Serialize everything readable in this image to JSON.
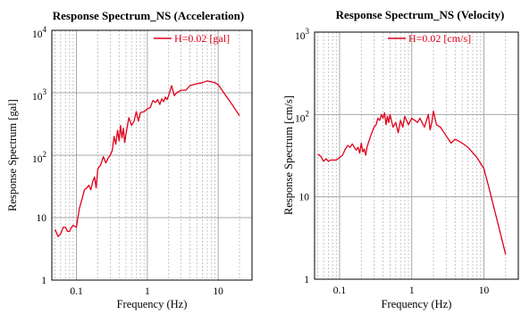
{
  "chart_data": [
    {
      "type": "line",
      "title": "Response Spectrum_NS (Acceleration)",
      "xlabel": "Frequency (Hz)",
      "ylabel": "Response Spectrum [gal]",
      "xscale": "log",
      "yscale": "log",
      "xlim": [
        0.045,
        30
      ],
      "ylim": [
        1,
        10000
      ],
      "x_ticks": [
        {
          "value": 0.1,
          "label": "0.1"
        },
        {
          "value": 1,
          "label": "1"
        },
        {
          "value": 10,
          "label": "10"
        }
      ],
      "y_ticks": [
        {
          "value": 1,
          "label": "1",
          "exp": ""
        },
        {
          "value": 10,
          "label": "10",
          "exp": ""
        },
        {
          "value": 100,
          "label": "10",
          "exp": "2"
        },
        {
          "value": 1000,
          "label": "10",
          "exp": "3"
        },
        {
          "value": 10000,
          "label": "10",
          "exp": "4"
        }
      ],
      "grid": true,
      "legend": "top-right",
      "series": [
        {
          "name": "H=0.02 [gal]",
          "color": "#e0001b",
          "x": [
            0.05,
            0.055,
            0.06,
            0.065,
            0.07,
            0.075,
            0.08,
            0.085,
            0.09,
            0.1,
            0.11,
            0.12,
            0.13,
            0.14,
            0.15,
            0.16,
            0.17,
            0.18,
            0.19,
            0.2,
            0.22,
            0.24,
            0.26,
            0.28,
            0.3,
            0.32,
            0.34,
            0.36,
            0.38,
            0.4,
            0.42,
            0.44,
            0.46,
            0.48,
            0.5,
            0.55,
            0.6,
            0.65,
            0.7,
            0.75,
            0.8,
            0.9,
            1.0,
            1.1,
            1.2,
            1.3,
            1.4,
            1.5,
            1.6,
            1.7,
            1.8,
            1.9,
            2.0,
            2.2,
            2.4,
            2.6,
            2.8,
            3.0,
            3.5,
            4.0,
            5.0,
            6.0,
            7.0,
            8.0,
            9.0,
            10.0,
            12.0,
            15.0,
            20.0
          ],
          "values": [
            6.5,
            5,
            5.5,
            7,
            7,
            6,
            6,
            7,
            7.5,
            7,
            14,
            20,
            28,
            30,
            33,
            28,
            38,
            45,
            30,
            60,
            70,
            95,
            75,
            90,
            100,
            120,
            200,
            150,
            250,
            170,
            300,
            190,
            270,
            160,
            220,
            400,
            300,
            350,
            500,
            350,
            480,
            500,
            550,
            580,
            750,
            700,
            780,
            650,
            800,
            720,
            850,
            780,
            900,
            1300,
            900,
            1000,
            1050,
            1100,
            1100,
            1300,
            1400,
            1450,
            1550,
            1500,
            1450,
            1350,
            1000,
            700,
            430
          ]
        }
      ]
    },
    {
      "type": "line",
      "title": "Response Spectrum_NS (Velocity)",
      "xlabel": "Frequency (Hz)",
      "ylabel": "Response Spectrum [cm/s]",
      "xscale": "log",
      "yscale": "log",
      "xlim": [
        0.045,
        30
      ],
      "ylim": [
        1,
        1000
      ],
      "x_ticks": [
        {
          "value": 0.1,
          "label": "0.1"
        },
        {
          "value": 1,
          "label": "1"
        },
        {
          "value": 10,
          "label": "10"
        }
      ],
      "y_ticks": [
        {
          "value": 1,
          "label": "1",
          "exp": ""
        },
        {
          "value": 10,
          "label": "10",
          "exp": ""
        },
        {
          "value": 100,
          "label": "10",
          "exp": "2"
        },
        {
          "value": 1000,
          "label": "10",
          "exp": "3"
        }
      ],
      "grid": true,
      "legend": "top-right",
      "series": [
        {
          "name": "H=0.02 [cm/s]",
          "color": "#e0001b",
          "x": [
            0.05,
            0.055,
            0.06,
            0.065,
            0.07,
            0.075,
            0.08,
            0.09,
            0.1,
            0.11,
            0.12,
            0.13,
            0.14,
            0.15,
            0.16,
            0.17,
            0.18,
            0.19,
            0.2,
            0.21,
            0.22,
            0.23,
            0.24,
            0.25,
            0.27,
            0.3,
            0.32,
            0.34,
            0.36,
            0.38,
            0.4,
            0.42,
            0.44,
            0.46,
            0.48,
            0.5,
            0.55,
            0.6,
            0.65,
            0.7,
            0.75,
            0.8,
            0.9,
            1.0,
            1.1,
            1.2,
            1.3,
            1.5,
            1.7,
            1.8,
            1.9,
            2.0,
            2.2,
            2.5,
            3.0,
            3.5,
            4.0,
            5.0,
            6.0,
            8.0,
            10.0,
            12.0,
            15.0,
            20.0
          ],
          "values": [
            33,
            31,
            27,
            29,
            27,
            28,
            28,
            28,
            30,
            32,
            38,
            42,
            40,
            44,
            40,
            37,
            40,
            34,
            45,
            35,
            38,
            32,
            40,
            45,
            55,
            70,
            75,
            90,
            85,
            100,
            90,
            105,
            75,
            95,
            80,
            100,
            70,
            80,
            60,
            85,
            70,
            95,
            75,
            90,
            85,
            80,
            90,
            70,
            100,
            65,
            80,
            110,
            75,
            70,
            55,
            45,
            50,
            45,
            40,
            30,
            22,
            12,
            5.5,
            2
          ]
        }
      ]
    }
  ]
}
